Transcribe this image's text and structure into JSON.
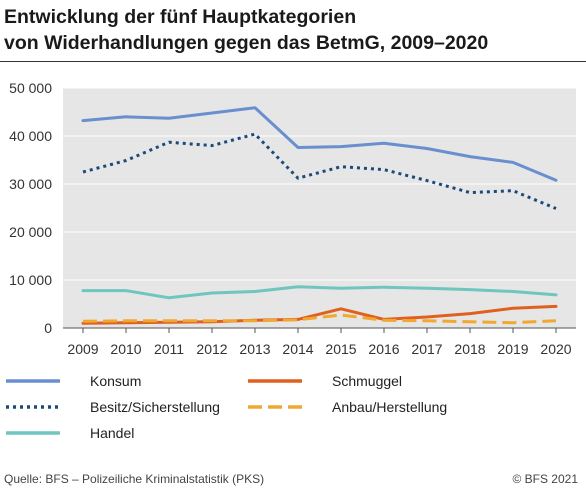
{
  "chart_data": {
    "type": "line",
    "title": [
      "Entwicklung der fünf Hauptkategorien",
      "von Widerhandlungen gegen das BetmG, 2009–2020"
    ],
    "x": [
      "2009",
      "2010",
      "2011",
      "2012",
      "2013",
      "2014",
      "2015",
      "2016",
      "2017",
      "2018",
      "2019",
      "2020"
    ],
    "ylim": [
      0,
      50000
    ],
    "yticks": [
      0,
      10000,
      20000,
      30000,
      40000,
      50000
    ],
    "ytick_labels": [
      "0",
      "10 000",
      "20 000",
      "30 000",
      "40 000",
      "50 000"
    ],
    "grid": true,
    "plot_background": "#e6e6e6",
    "series": [
      {
        "name": "Konsum",
        "color": "#6a8fcf",
        "style": "solid",
        "values": [
          43200,
          44000,
          43700,
          44800,
          45900,
          37600,
          37800,
          38500,
          37400,
          35700,
          34500,
          30800
        ]
      },
      {
        "name": "Besitz/Sicherstellung",
        "color": "#1b4a7a",
        "style": "dotted",
        "values": [
          32500,
          34900,
          38700,
          38000,
          40400,
          31200,
          33600,
          33000,
          30700,
          28200,
          28600,
          24900
        ]
      },
      {
        "name": "Handel",
        "color": "#6ec6bf",
        "style": "solid",
        "values": [
          7800,
          7800,
          6300,
          7300,
          7600,
          8600,
          8300,
          8500,
          8300,
          8000,
          7600,
          6900
        ]
      },
      {
        "name": "Schmuggel",
        "color": "#e06020",
        "style": "solid",
        "values": [
          1000,
          1100,
          1200,
          1300,
          1600,
          1800,
          4000,
          1800,
          2300,
          3000,
          4100,
          4500
        ]
      },
      {
        "name": "Anbau/Herstellung",
        "color": "#f0a830",
        "style": "dashed",
        "values": [
          1400,
          1500,
          1500,
          1500,
          1500,
          1700,
          2700,
          1600,
          1500,
          1300,
          1100,
          1500
        ]
      }
    ],
    "legend_placement": "bottom"
  },
  "footer": {
    "source": "Quelle: BFS – Polizeiliche Kriminalstatistik (PKS)",
    "copyright": "© BFS 2021"
  }
}
